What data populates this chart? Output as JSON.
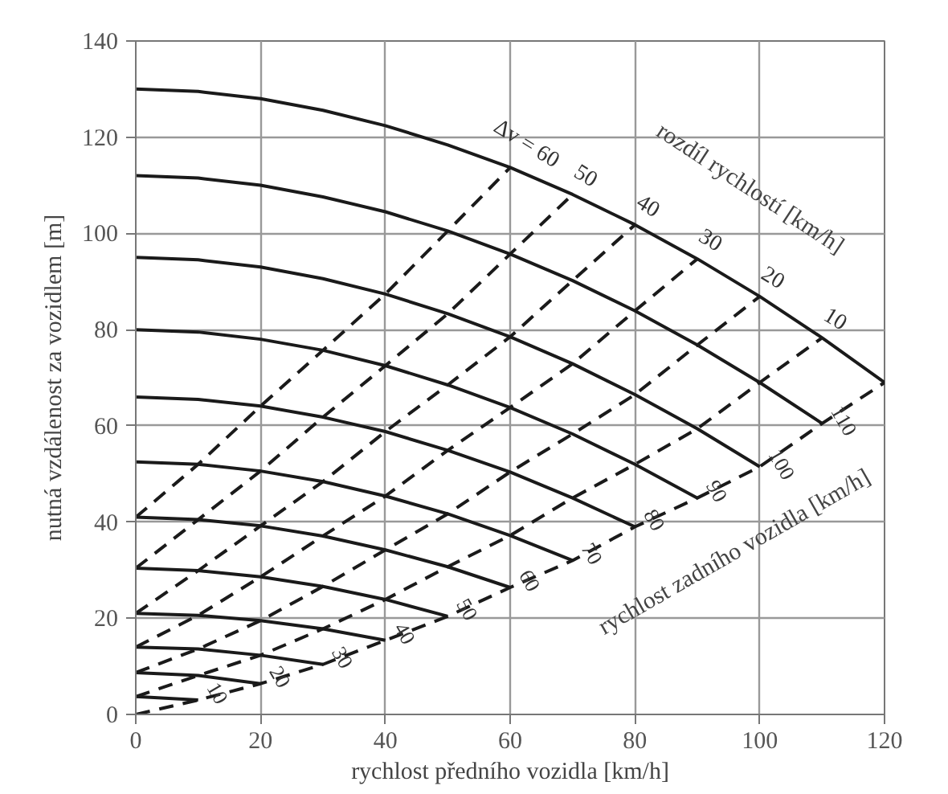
{
  "chart_data": {
    "type": "line",
    "xlabel": "rychlost předního vozidla [km/h]",
    "ylabel": "nutná vzdálenost za vozidlem [m]",
    "xlim": [
      0,
      120
    ],
    "ylim": [
      0,
      140
    ],
    "xticks": [
      0,
      20,
      40,
      60,
      80,
      100,
      120
    ],
    "yticks": [
      0,
      20,
      40,
      60,
      80,
      100,
      120,
      140
    ],
    "grid": true,
    "series": [
      {
        "name": "10",
        "color": "#1a1a1a",
        "line_style": "solid",
        "x": [
          0,
          10
        ],
        "values": [
          3.7,
          3
        ]
      },
      {
        "name": "20",
        "color": "#1a1a1a",
        "line_style": "solid",
        "x": [
          0,
          10,
          20
        ],
        "values": [
          8.7,
          8.1,
          6.4
        ]
      },
      {
        "name": "30",
        "color": "#1a1a1a",
        "line_style": "solid",
        "x": [
          0,
          10,
          20,
          30
        ],
        "values": [
          14,
          13.6,
          12.3,
          10.4
        ]
      },
      {
        "name": "40",
        "color": "#1a1a1a",
        "line_style": "solid",
        "x": [
          0,
          10,
          20,
          30,
          40
        ],
        "values": [
          21,
          20.6,
          19.5,
          17.8,
          15.4
        ]
      },
      {
        "name": "50",
        "color": "#1a1a1a",
        "line_style": "solid",
        "x": [
          0,
          10,
          20,
          30,
          40,
          50
        ],
        "values": [
          30.4,
          29.9,
          28.6,
          26.6,
          23.9,
          20.4
        ]
      },
      {
        "name": "60",
        "color": "#1a1a1a",
        "line_style": "solid",
        "x": [
          0,
          10,
          20,
          30,
          40,
          50,
          60
        ],
        "values": [
          41,
          40.5,
          39.2,
          37.1,
          34.2,
          30.7,
          26.4
        ]
      },
      {
        "name": "70",
        "color": "#1a1a1a",
        "line_style": "solid",
        "x": [
          0,
          10,
          20,
          30,
          40,
          50,
          60,
          70
        ],
        "values": [
          52.5,
          52,
          50.6,
          48.4,
          45.4,
          41.7,
          37.2,
          32
        ]
      },
      {
        "name": "80",
        "color": "#1a1a1a",
        "line_style": "solid",
        "x": [
          0,
          10,
          20,
          30,
          40,
          50,
          60,
          70,
          80
        ],
        "values": [
          66,
          65.5,
          64.1,
          61.8,
          58.8,
          54.9,
          50.4,
          45,
          39
        ]
      },
      {
        "name": "90",
        "color": "#1a1a1a",
        "line_style": "solid",
        "x": [
          0,
          10,
          20,
          30,
          40,
          50,
          60,
          70,
          80,
          90
        ],
        "values": [
          80,
          79.5,
          78,
          75.7,
          72.5,
          68.5,
          63.8,
          58.3,
          52,
          45
        ]
      },
      {
        "name": "100",
        "color": "#1a1a1a",
        "line_style": "solid",
        "x": [
          0,
          10,
          20,
          30,
          40,
          50,
          60,
          70,
          80,
          90,
          100
        ],
        "values": [
          95,
          94.5,
          93,
          90.6,
          87.4,
          83.3,
          78.5,
          72.9,
          66.5,
          59.4,
          51.5
        ]
      },
      {
        "name": "110",
        "color": "#1a1a1a",
        "line_style": "solid",
        "x": [
          0,
          10,
          20,
          30,
          40,
          50,
          60,
          70,
          80,
          90,
          100,
          110
        ],
        "values": [
          112,
          111.5,
          110,
          107.6,
          104.5,
          100.5,
          95.7,
          90.2,
          83.9,
          76.8,
          69,
          60.5
        ]
      },
      {
        "name": "120",
        "color": "#1a1a1a",
        "line_style": "solid",
        "x": [
          0,
          10,
          20,
          30,
          40,
          50,
          60,
          70,
          80,
          90,
          100,
          110,
          120
        ],
        "values": [
          130,
          129.5,
          128,
          125.6,
          122.4,
          118.4,
          113.7,
          108.1,
          101.8,
          94.7,
          86.9,
          78.3,
          69
        ]
      },
      {
        "name": "0",
        "color": "#1a1a1a",
        "line_style": "dashed",
        "x": [
          0,
          10,
          20,
          30,
          40,
          50,
          60,
          70,
          80,
          90,
          100,
          110,
          120
        ],
        "values": [
          0,
          3,
          6.4,
          10.4,
          15.4,
          20.4,
          26.4,
          32,
          39,
          45,
          51.5,
          60.5,
          69
        ]
      },
      {
        "name": "10",
        "color": "#1a1a1a",
        "line_style": "dashed",
        "x": [
          0,
          10,
          20,
          30,
          40,
          50,
          60,
          70,
          80,
          90,
          100,
          110
        ],
        "values": [
          3.7,
          8.1,
          12.3,
          17.8,
          23.9,
          30.7,
          37.2,
          45,
          52,
          59.4,
          69,
          78.3
        ]
      },
      {
        "name": "20",
        "color": "#1a1a1a",
        "line_style": "dashed",
        "x": [
          0,
          10,
          20,
          30,
          40,
          50,
          60,
          70,
          80,
          90,
          100
        ],
        "values": [
          8.7,
          13.6,
          19.5,
          26.6,
          34.2,
          41.7,
          50.4,
          58.3,
          66.5,
          76.8,
          86.9
        ]
      },
      {
        "name": "30",
        "color": "#1a1a1a",
        "line_style": "dashed",
        "x": [
          0,
          10,
          20,
          30,
          40,
          50,
          60,
          70,
          80,
          90
        ],
        "values": [
          14,
          20.6,
          28.6,
          37.1,
          45.4,
          54.9,
          63.8,
          72.9,
          83.9,
          94.7
        ]
      },
      {
        "name": "40",
        "color": "#1a1a1a",
        "line_style": "dashed",
        "x": [
          0,
          10,
          20,
          30,
          40,
          50,
          60,
          70,
          80
        ],
        "values": [
          21,
          29.9,
          39.2,
          48.4,
          58.8,
          68.5,
          78.5,
          90.2,
          101.8
        ]
      },
      {
        "name": "50",
        "color": "#1a1a1a",
        "line_style": "dashed",
        "x": [
          0,
          10,
          20,
          30,
          40,
          50,
          60,
          70
        ],
        "values": [
          30.4,
          40.5,
          50.6,
          61.8,
          72.5,
          83.3,
          95.7,
          108.1
        ]
      },
      {
        "name": "Δv = 60",
        "color": "#1a1a1a",
        "line_style": "dashed",
        "x": [
          0,
          10,
          20,
          30,
          40,
          50,
          60
        ],
        "values": [
          41,
          52,
          64.1,
          75.7,
          87.4,
          100.5,
          113.7
        ]
      }
    ],
    "annotations": [
      "rozdíl rychlostí [km/h]",
      "rychlost zadního vozidla [km/h]"
    ]
  }
}
